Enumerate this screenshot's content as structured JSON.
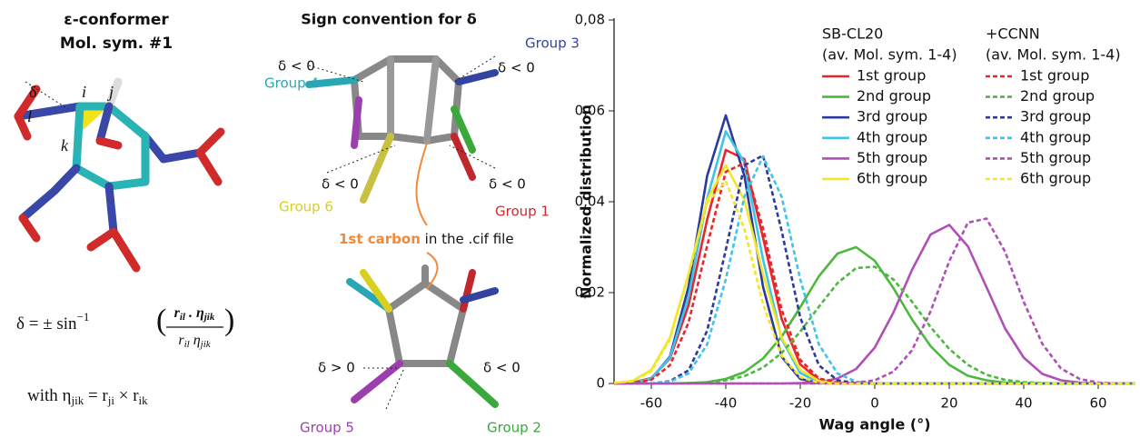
{
  "left_panel": {
    "title": "ε-conformer",
    "subtitle": "Mol. sym. #1",
    "atom_labels": [
      "δ",
      "i",
      "j",
      "l",
      "k"
    ],
    "formula_lhs": "δ = ± sin",
    "formula_exp": "−1",
    "numerator": [
      "r",
      "il",
      " . η",
      "jik"
    ],
    "denominator": [
      "r",
      "il",
      " η",
      "jik"
    ],
    "with_line": [
      "with   η",
      "jik",
      " = r",
      "ji",
      " × r",
      "ik"
    ]
  },
  "middle_panel": {
    "title": "Sign convention for δ",
    "groups": [
      "Group 1",
      "Group 2",
      "Group 3",
      "Group 4",
      "Group 5",
      "Group 6"
    ],
    "signs": [
      "δ < 0",
      "δ < 0",
      "δ < 0",
      "δ < 0",
      "δ > 0",
      "δ < 0"
    ],
    "carbon_label": "1st carbon",
    "carbon_note": " in the .cif file"
  },
  "chart_data": {
    "type": "line",
    "xlabel": "Wag angle (°)",
    "ylabel": "Normalized distribution",
    "xlim": [
      -70,
      70
    ],
    "ylim": [
      0,
      0.08
    ],
    "xticks": [
      -60,
      -40,
      -20,
      0,
      20,
      40,
      60
    ],
    "yticks": [
      0,
      {
        "value": 0.02,
        "label": "0,02"
      },
      {
        "value": 0.04,
        "label": "0,04"
      },
      {
        "value": 0.06,
        "label": "0,06"
      },
      {
        "value": 0.08,
        "label": "0,08"
      }
    ],
    "legend_titles": [
      [
        "SB-CL20",
        "(av. Mol. sym. 1-4)"
      ],
      [
        "+CCNN",
        "(av. Mol. sym. 1-4)"
      ]
    ],
    "x": [
      -70,
      -65,
      -60,
      -55,
      -50,
      -45,
      -40,
      -35,
      -30,
      -25,
      -20,
      -15,
      -10,
      -5,
      0,
      5,
      10,
      15,
      20,
      25,
      30,
      35,
      40,
      45,
      50,
      55,
      60,
      65,
      70
    ],
    "series": [
      {
        "name": "1st group",
        "color": "#e8262b",
        "legend": 0,
        "line_style": "solid",
        "values": [
          0,
          0.0002,
          0.0012,
          0.0055,
          0.0172,
          0.0361,
          0.0514,
          0.0494,
          0.0321,
          0.0142,
          0.0042,
          0.0008,
          0.0001,
          0,
          0,
          0,
          0,
          0,
          0,
          0,
          0,
          0,
          0,
          0,
          0,
          0,
          0,
          0,
          0
        ]
      },
      {
        "name": "2nd group",
        "color": "#4db840",
        "legend": 0,
        "line_style": "solid",
        "values": [
          0,
          0,
          0,
          0,
          0.0001,
          0.0003,
          0.001,
          0.0025,
          0.0055,
          0.0103,
          0.0168,
          0.0236,
          0.0286,
          0.03,
          0.027,
          0.021,
          0.0141,
          0.0082,
          0.0041,
          0.0017,
          0.0007,
          0.0002,
          0.0001,
          0,
          0,
          0,
          0,
          0,
          0
        ]
      },
      {
        "name": "3rd group",
        "color": "#2b3a9c",
        "legend": 0,
        "line_style": "solid",
        "values": [
          0,
          0.0001,
          0.001,
          0.0059,
          0.0213,
          0.0457,
          0.059,
          0.0457,
          0.0213,
          0.0059,
          0.001,
          0.0001,
          0,
          0,
          0,
          0,
          0,
          0,
          0,
          0,
          0,
          0,
          0,
          0,
          0,
          0,
          0,
          0,
          0
        ]
      },
      {
        "name": "4th group",
        "color": "#3fc3e6",
        "legend": 0,
        "line_style": "solid",
        "values": [
          0,
          0.0001,
          0.0011,
          0.0057,
          0.0191,
          0.0407,
          0.0555,
          0.0486,
          0.0273,
          0.0098,
          0.0023,
          0.0003,
          0,
          0,
          0,
          0,
          0,
          0,
          0,
          0,
          0,
          0,
          0,
          0,
          0,
          0,
          0,
          0,
          0
        ]
      },
      {
        "name": "5th group",
        "color": "#b04fb5",
        "legend": 0,
        "line_style": "solid",
        "values": [
          0,
          0,
          0,
          0,
          0,
          0,
          0,
          0,
          0,
          0,
          0.0001,
          0.0003,
          0.0011,
          0.0032,
          0.0079,
          0.0156,
          0.025,
          0.0328,
          0.0349,
          0.0302,
          0.0212,
          0.0121,
          0.0057,
          0.0021,
          0.0007,
          0.0002,
          0,
          0,
          0
        ]
      },
      {
        "name": "6th group",
        "color": "#f1e62a",
        "legend": 0,
        "line_style": "solid",
        "values": [
          0.0001,
          0.0006,
          0.003,
          0.0101,
          0.0241,
          0.0404,
          0.048,
          0.0404,
          0.0241,
          0.0101,
          0.003,
          0.0006,
          0.0001,
          0,
          0,
          0,
          0,
          0,
          0,
          0,
          0,
          0,
          0,
          0,
          0,
          0,
          0,
          0,
          0
        ]
      },
      {
        "name": "1st group",
        "color": "#e8262b",
        "legend": 1,
        "line_style": "dashed",
        "values": [
          0,
          0.0001,
          0.0008,
          0.004,
          0.0134,
          0.0303,
          0.0466,
          0.0485,
          0.0341,
          0.0162,
          0.0052,
          0.0011,
          0.0002,
          0,
          0,
          0,
          0,
          0,
          0,
          0,
          0,
          0,
          0,
          0,
          0,
          0,
          0,
          0,
          0
        ]
      },
      {
        "name": "2nd group",
        "color": "#4db840",
        "legend": 1,
        "line_style": "dashed",
        "values": [
          0,
          0,
          0,
          0,
          0.0001,
          0.0002,
          0.0007,
          0.0016,
          0.0035,
          0.0067,
          0.0114,
          0.0169,
          0.0221,
          0.0254,
          0.0257,
          0.0229,
          0.018,
          0.0124,
          0.0076,
          0.0041,
          0.0019,
          0.0008,
          0.0003,
          0.0001,
          0,
          0,
          0,
          0,
          0
        ]
      },
      {
        "name": "3rd group",
        "color": "#2b3a9c",
        "legend": 1,
        "line_style": "dashed",
        "values": [
          0,
          0,
          0,
          0.0005,
          0.0029,
          0.0116,
          0.0294,
          0.048,
          0.0502,
          0.0336,
          0.0145,
          0.004,
          0.0007,
          0.0001,
          0,
          0,
          0,
          0,
          0,
          0,
          0,
          0,
          0,
          0,
          0,
          0,
          0,
          0,
          0
        ]
      },
      {
        "name": "4th group",
        "color": "#3fc3e6",
        "legend": 1,
        "line_style": "dashed",
        "values": [
          0,
          0,
          0,
          0.0004,
          0.0022,
          0.0086,
          0.0229,
          0.0411,
          0.05,
          0.0411,
          0.0229,
          0.0086,
          0.0022,
          0.0004,
          0,
          0,
          0,
          0,
          0,
          0,
          0,
          0,
          0,
          0,
          0,
          0,
          0,
          0,
          0
        ]
      },
      {
        "name": "5th group",
        "color": "#b04fb5",
        "legend": 1,
        "line_style": "dashed",
        "values": [
          0,
          0,
          0,
          0,
          0,
          0,
          0,
          0,
          0,
          0,
          0,
          0,
          0,
          0.0002,
          0.0007,
          0.0026,
          0.0073,
          0.0159,
          0.0269,
          0.0354,
          0.0363,
          0.029,
          0.018,
          0.0087,
          0.0033,
          0.001,
          0.0002,
          0,
          0
        ]
      },
      {
        "name": "6th group",
        "color": "#f1e62a",
        "legend": 1,
        "line_style": "dashed",
        "values": [
          0.0001,
          0.0005,
          0.0027,
          0.0097,
          0.0239,
          0.0397,
          0.0446,
          0.034,
          0.0175,
          0.0061,
          0.0014,
          0.0002,
          0,
          0,
          0,
          0,
          0,
          0,
          0,
          0,
          0,
          0,
          0,
          0,
          0,
          0,
          0,
          0,
          0
        ]
      }
    ]
  }
}
